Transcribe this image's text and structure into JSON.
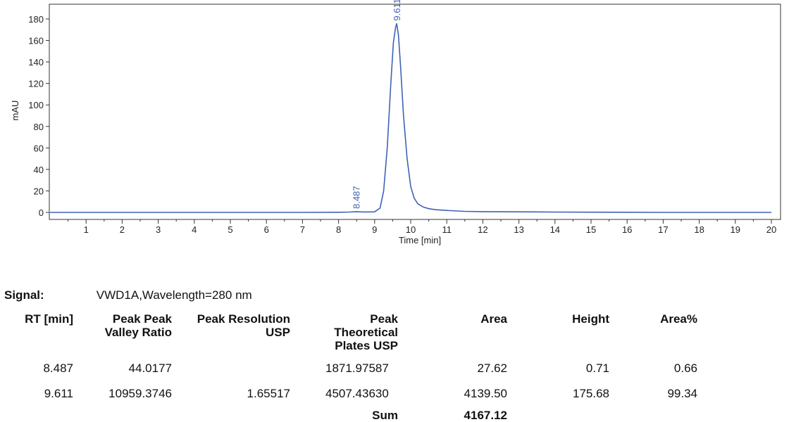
{
  "chart_data": {
    "type": "line",
    "ylabel": "mAU",
    "xlabel": "Time [min]",
    "xlim": [
      0,
      20
    ],
    "ylim": [
      -5,
      188
    ],
    "xticks": [
      1,
      2,
      3,
      4,
      5,
      6,
      7,
      8,
      9,
      10,
      11,
      12,
      13,
      14,
      15,
      16,
      17,
      18,
      19,
      20
    ],
    "yticks": [
      0,
      20,
      40,
      60,
      80,
      100,
      120,
      140,
      160,
      180
    ],
    "grid": false,
    "line_color": "#3e63b4",
    "series": [
      {
        "x": [
          0,
          1,
          2,
          3,
          4,
          5,
          6,
          7,
          8,
          8.3,
          8.487,
          8.7,
          9.0,
          9.15,
          9.25,
          9.35,
          9.45,
          9.52,
          9.58,
          9.611,
          9.66,
          9.72,
          9.8,
          9.9,
          10.0,
          10.1,
          10.2,
          10.35,
          10.5,
          10.7,
          11.0,
          11.5,
          12,
          13,
          14,
          15,
          16,
          17,
          18,
          19,
          20
        ],
        "y": [
          0,
          0,
          0,
          0,
          0,
          0,
          0,
          0,
          0.1,
          0.3,
          0.71,
          0.4,
          0.5,
          4,
          20,
          60,
          120,
          158,
          172,
          175.68,
          165,
          135,
          90,
          50,
          24,
          13,
          8,
          5,
          3.5,
          2.5,
          1.8,
          1.0,
          0.7,
          0.5,
          0.3,
          0.2,
          0.1,
          0,
          0,
          0,
          0
        ]
      }
    ],
    "peak_labels": [
      {
        "x": 8.487,
        "y": 0.71,
        "label": "8.487"
      },
      {
        "x": 9.611,
        "y": 175.68,
        "label": "9.611"
      }
    ]
  },
  "signal": {
    "label": "Signal:",
    "value": "VWD1A,Wavelength=280 nm"
  },
  "table": {
    "headers": {
      "rt": "RT [min]",
      "valley": "Peak Peak\nValley Ratio",
      "resolution": "Peak Resolution\nUSP",
      "plates": "Peak\nTheoretical\nPlates USP",
      "area": "Area",
      "height": "Height",
      "area_pct": "Area%"
    },
    "rows": [
      {
        "rt": "8.487",
        "valley": "44.0177",
        "resolution": "",
        "plates": "1871.97587",
        "area": "27.62",
        "height": "0.71",
        "area_pct": "0.66"
      },
      {
        "rt": "9.611",
        "valley": "10959.3746",
        "resolution": "1.65517",
        "plates": "4507.43630",
        "area": "4139.50",
        "height": "175.68",
        "area_pct": "99.34"
      }
    ],
    "sum_label": "Sum",
    "sum_value": "4167.12"
  }
}
